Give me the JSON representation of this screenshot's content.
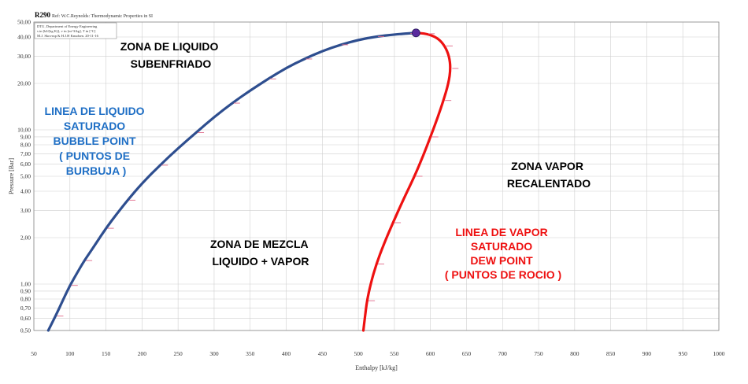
{
  "chart_data": {
    "type": "line",
    "title": "R290",
    "reference": "Ref: W.C.Reynolds: Thermodynamic Properties in SI",
    "info_box": [
      "DTU, Department of Energy Engineering",
      "s in [kJ/(kg K)], v in [m^3/kg], T in [°C]",
      "M.J. Skovrup & H.J.H Knudsen. 20-11-16"
    ],
    "xlabel": "Enthalpy [kJ/kg]",
    "ylabel": "Pressure [Bar]",
    "xlim": [
      50,
      1000
    ],
    "ylim": [
      0.5,
      50
    ],
    "yscale": "log",
    "grid": true,
    "x_ticks": [
      "50",
      "100",
      "150",
      "200",
      "250",
      "300",
      "350",
      "400",
      "450",
      "500",
      "550",
      "600",
      "650",
      "700",
      "750",
      "800",
      "850",
      "900",
      "950",
      "1000"
    ],
    "y_ticks": [
      {
        "value": 0.5,
        "label": "0,50"
      },
      {
        "value": 0.6,
        "label": "0,60"
      },
      {
        "value": 0.7,
        "label": "0,70"
      },
      {
        "value": 0.8,
        "label": "0,80"
      },
      {
        "value": 0.9,
        "label": "0,90"
      },
      {
        "value": 1,
        "label": "1,00"
      },
      {
        "value": 2,
        "label": "2,00"
      },
      {
        "value": 3,
        "label": "3,00"
      },
      {
        "value": 4,
        "label": "4,00"
      },
      {
        "value": 5,
        "label": "5,00"
      },
      {
        "value": 6,
        "label": "6,00"
      },
      {
        "value": 7,
        "label": "7,00"
      },
      {
        "value": 8,
        "label": "8,00"
      },
      {
        "value": 9,
        "label": "9,00"
      },
      {
        "value": 10,
        "label": "10,00"
      },
      {
        "value": 20,
        "label": "20,00"
      },
      {
        "value": 30,
        "label": "30,00"
      },
      {
        "value": 40,
        "label": "40,00"
      },
      {
        "value": 50,
        "label": "50,00"
      }
    ],
    "series": [
      {
        "color": "#2e4e8f",
        "points": [
          [
            70,
            0.5
          ],
          [
            80,
            0.62
          ],
          [
            90,
            0.78
          ],
          [
            100,
            0.98
          ],
          [
            110,
            1.18
          ],
          [
            120,
            1.42
          ],
          [
            135,
            1.8
          ],
          [
            150,
            2.3
          ],
          [
            165,
            2.85
          ],
          [
            180,
            3.5
          ],
          [
            200,
            4.5
          ],
          [
            225,
            5.9
          ],
          [
            250,
            7.6
          ],
          [
            275,
            9.6
          ],
          [
            300,
            12.1
          ],
          [
            325,
            14.9
          ],
          [
            350,
            18.0
          ],
          [
            375,
            21.4
          ],
          [
            400,
            25.2
          ],
          [
            425,
            28.8
          ],
          [
            450,
            32.4
          ],
          [
            475,
            35.6
          ],
          [
            500,
            38.3
          ],
          [
            525,
            40.3
          ],
          [
            550,
            41.5
          ],
          [
            570,
            42.2
          ],
          [
            580,
            42.5
          ]
        ]
      },
      {
        "color": "#ee1111",
        "points": [
          [
            580,
            42.5
          ],
          [
            595,
            42.0
          ],
          [
            610,
            39.5
          ],
          [
            620,
            35.0
          ],
          [
            626,
            30.0
          ],
          [
            628,
            25.0
          ],
          [
            625,
            20.0
          ],
          [
            618,
            15.5
          ],
          [
            610,
            12.0
          ],
          [
            600,
            9.0
          ],
          [
            590,
            6.8
          ],
          [
            578,
            5.0
          ],
          [
            562,
            3.5
          ],
          [
            548,
            2.5
          ],
          [
            535,
            1.8
          ],
          [
            525,
            1.35
          ],
          [
            517,
            1.0
          ],
          [
            512,
            0.78
          ],
          [
            509,
            0.6
          ],
          [
            507,
            0.5
          ]
        ]
      }
    ],
    "critical_point": {
      "x": 580,
      "y": 42.5,
      "color": "#5a2a9e"
    },
    "annotations": [
      {
        "lines": [
          "ZONA DE LIQUIDO",
          "SUBENFRIADO"
        ],
        "color": "#111111"
      },
      {
        "lines": [
          "LINEA DE LIQUIDO",
          "SATURADO",
          "BUBBLE POINT",
          "( PUNTOS DE",
          "BURBUJA )"
        ],
        "color": "#1f6fc5"
      },
      {
        "lines": [
          "ZONA DE MEZCLA",
          "LIQUIDO + VAPOR"
        ],
        "color": "#111111"
      },
      {
        "lines": [
          "ZONA VAPOR",
          "RECALENTADO"
        ],
        "color": "#111111"
      },
      {
        "lines": [
          "LINEA DE VAPOR",
          "SATURADO",
          "DEW POINT",
          "( PUNTOS DE ROCIO )"
        ],
        "color": "#ee1111"
      }
    ]
  }
}
